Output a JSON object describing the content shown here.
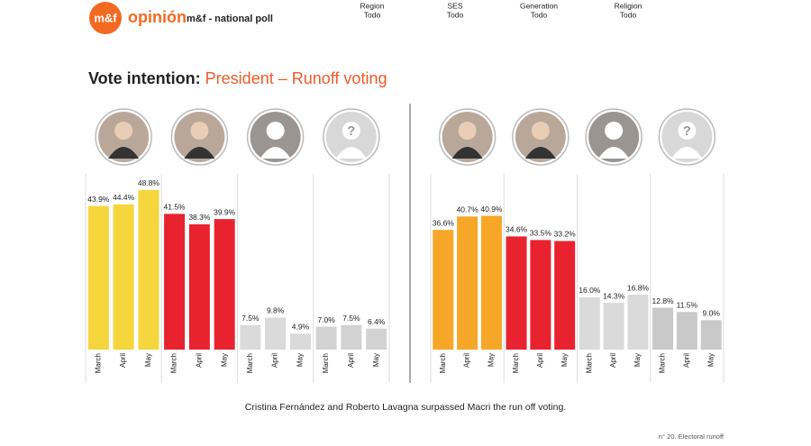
{
  "header": {
    "logo": "m&f",
    "brand": "opinión",
    "subtitle": "m&f - national poll"
  },
  "filters": [
    {
      "label": "Region",
      "value": "Todo"
    },
    {
      "label": "SES",
      "value": "Todo"
    },
    {
      "label": "Generation",
      "value": "Todo"
    },
    {
      "label": "Religion",
      "value": "Todo"
    }
  ],
  "title": {
    "prefix": "Vote intention:",
    "main": "President – Runoff voting"
  },
  "chart_data": [
    {
      "type": "bar",
      "categories": [
        "March",
        "April",
        "May"
      ],
      "series": [
        {
          "color": "#f5d63d",
          "values": [
            43.9,
            44.4,
            48.8
          ],
          "value_labels": [
            "43.9%",
            "44.4%",
            "48.8%"
          ]
        },
        {
          "color": "#e8232f",
          "values": [
            41.5,
            38.3,
            39.9
          ],
          "value_labels": [
            "41.5%",
            "38.3%",
            "39.9%"
          ]
        },
        {
          "color": "#dadada",
          "values": [
            7.5,
            9.8,
            4.9
          ],
          "value_labels": [
            "7.5%",
            "9.8%",
            "4.9%"
          ]
        },
        {
          "color": "#d2d2d2",
          "values": [
            7.0,
            7.5,
            6.4
          ],
          "value_labels": [
            "7.0%",
            "7.5%",
            "6.4%"
          ]
        }
      ]
    },
    {
      "type": "bar",
      "categories": [
        "March",
        "April",
        "May"
      ],
      "series": [
        {
          "color": "#f6a727",
          "values": [
            36.6,
            40.7,
            40.9
          ],
          "value_labels": [
            "36.6%",
            "40.7%",
            "40.9%"
          ]
        },
        {
          "color": "#e8232f",
          "values": [
            34.6,
            33.5,
            33.2
          ],
          "value_labels": [
            "34.6%",
            "33.5%",
            "33.2%"
          ]
        },
        {
          "color": "#dadada",
          "values": [
            16.0,
            14.3,
            16.8
          ],
          "value_labels": [
            "16.0%",
            "14.3%",
            "16.8%"
          ]
        },
        {
          "color": "#c9c9c9",
          "values": [
            12.8,
            11.5,
            9.0
          ],
          "value_labels": [
            "12.8%",
            "11.5%",
            "9.0%"
          ]
        }
      ]
    }
  ],
  "caption": "Cristina Fernández and Roberto Lavagna surpassed Macri the run off voting.",
  "footer": "n° 20. Electoral runoff"
}
